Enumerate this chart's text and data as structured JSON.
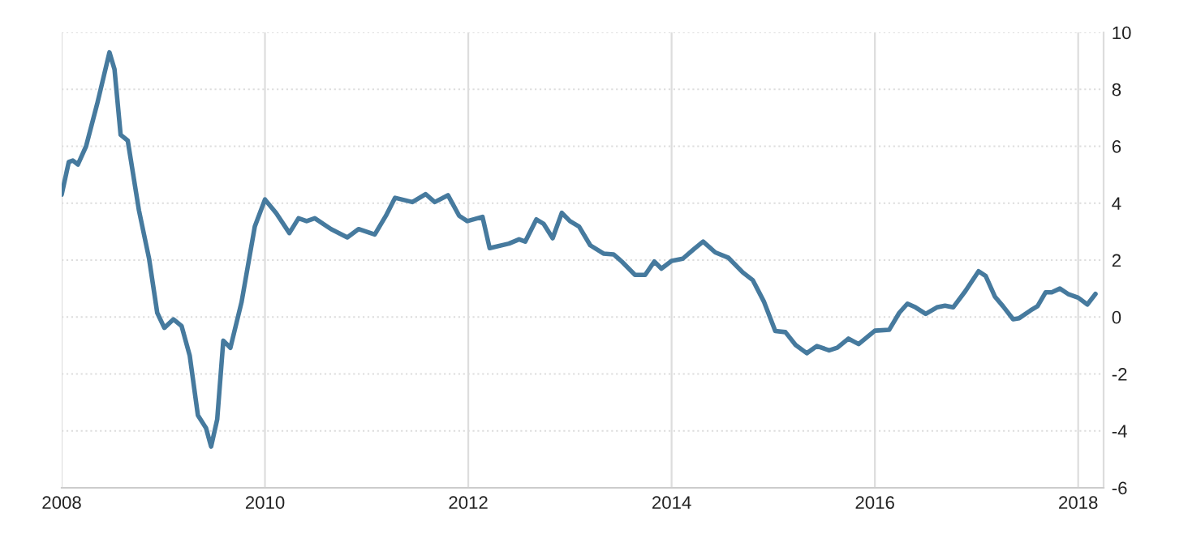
{
  "chart_data": {
    "type": "line",
    "x": [
      2008.0,
      2008.07,
      2008.11,
      2008.16,
      2008.24,
      2008.35,
      2008.47,
      2008.52,
      2008.58,
      2008.65,
      2008.76,
      2008.86,
      2008.94,
      2009.01,
      2009.1,
      2009.18,
      2009.26,
      2009.34,
      2009.42,
      2009.47,
      2009.53,
      2009.59,
      2009.66,
      2009.77,
      2009.9,
      2010.0,
      2010.11,
      2010.24,
      2010.33,
      2010.41,
      2010.49,
      2010.65,
      2010.81,
      2010.92,
      2011.08,
      2011.19,
      2011.28,
      2011.45,
      2011.58,
      2011.67,
      2011.8,
      2011.91,
      2011.99,
      2012.14,
      2012.21,
      2012.4,
      2012.5,
      2012.56,
      2012.67,
      2012.74,
      2012.83,
      2012.92,
      2013.0,
      2013.09,
      2013.2,
      2013.33,
      2013.43,
      2013.51,
      2013.64,
      2013.74,
      2013.83,
      2013.9,
      2014.0,
      2014.11,
      2014.22,
      2014.31,
      2014.43,
      2014.56,
      2014.7,
      2014.8,
      2014.91,
      2015.02,
      2015.12,
      2015.22,
      2015.33,
      2015.43,
      2015.55,
      2015.63,
      2015.74,
      2015.84,
      2016.0,
      2016.14,
      2016.24,
      2016.32,
      2016.4,
      2016.5,
      2016.61,
      2016.69,
      2016.77,
      2016.89,
      2017.02,
      2017.09,
      2017.18,
      2017.26,
      2017.36,
      2017.42,
      2017.53,
      2017.6,
      2017.68,
      2017.74,
      2017.82,
      2017.9,
      2018.0,
      2018.09,
      2018.17
    ],
    "series": [
      {
        "color": "#467a9e",
        "values": [
          4.3,
          5.45,
          5.5,
          5.36,
          6.0,
          7.5,
          9.3,
          8.7,
          6.4,
          6.2,
          3.75,
          2.05,
          0.15,
          -0.38,
          -0.08,
          -0.32,
          -1.36,
          -3.45,
          -3.9,
          -4.55,
          -3.6,
          -0.83,
          -1.08,
          0.53,
          3.18,
          4.13,
          3.65,
          2.95,
          3.47,
          3.37,
          3.47,
          3.09,
          2.8,
          3.09,
          2.9,
          3.56,
          4.19,
          4.04,
          4.32,
          4.04,
          4.28,
          3.56,
          3.37,
          3.52,
          2.42,
          2.58,
          2.73,
          2.65,
          3.43,
          3.28,
          2.77,
          3.66,
          3.37,
          3.18,
          2.52,
          2.23,
          2.2,
          1.95,
          1.48,
          1.48,
          1.95,
          1.7,
          1.97,
          2.05,
          2.39,
          2.65,
          2.27,
          2.08,
          1.57,
          1.29,
          0.53,
          -0.49,
          -0.53,
          -0.98,
          -1.27,
          -1.02,
          -1.17,
          -1.08,
          -0.76,
          -0.95,
          -0.48,
          -0.45,
          0.15,
          0.47,
          0.34,
          0.11,
          0.34,
          0.4,
          0.34,
          0.91,
          1.61,
          1.44,
          0.72,
          0.38,
          -0.08,
          -0.04,
          0.23,
          0.38,
          0.87,
          0.87,
          1.0,
          0.81,
          0.68,
          0.44,
          0.81
        ]
      }
    ],
    "xlim": [
      2008,
      2018.25
    ],
    "xticks": [
      2008,
      2010,
      2012,
      2014,
      2016,
      2018
    ],
    "ylim": [
      -6,
      10
    ],
    "yticks": [
      -6,
      -4,
      -2,
      0,
      2,
      4,
      6,
      8,
      10
    ],
    "grid": true,
    "marker": "none",
    "line_style": "solid"
  }
}
